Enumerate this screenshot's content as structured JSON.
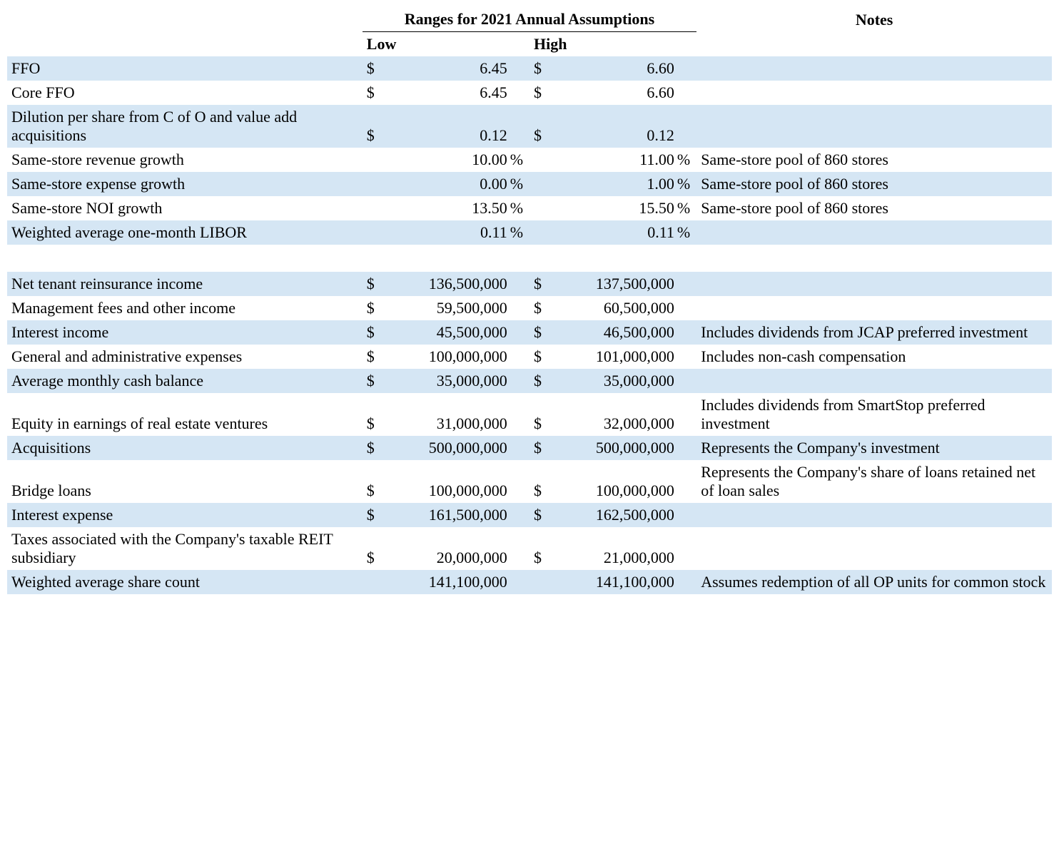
{
  "colors": {
    "stripe_bg": "#d5e6f4",
    "page_bg": "#ffffff",
    "text": "#000000",
    "border": "#000000"
  },
  "typography": {
    "font_family": "Times New Roman",
    "font_size_pt": 17
  },
  "header": {
    "main": "Ranges for 2021 Annual Assumptions",
    "notes": "Notes",
    "low": "Low",
    "high": "High"
  },
  "rows": [
    {
      "stripe": true,
      "label": "FFO",
      "low_sym": "$",
      "low_val": "6.45",
      "low_suffix": "",
      "high_sym": "$",
      "high_val": "6.60",
      "high_suffix": "",
      "notes": ""
    },
    {
      "stripe": false,
      "label": "Core FFO",
      "low_sym": "$",
      "low_val": "6.45",
      "low_suffix": "",
      "high_sym": "$",
      "high_val": "6.60",
      "high_suffix": "",
      "notes": ""
    },
    {
      "stripe": true,
      "label": "Dilution per share from C of O and value add acquisitions",
      "low_sym": "$",
      "low_val": "0.12",
      "low_suffix": "",
      "high_sym": "$",
      "high_val": "0.12",
      "high_suffix": "",
      "notes": ""
    },
    {
      "stripe": false,
      "label": "Same-store revenue growth",
      "low_sym": "",
      "low_val": "10.00",
      "low_suffix": " %",
      "high_sym": "",
      "high_val": "11.00",
      "high_suffix": " %",
      "notes": "Same-store pool of 860 stores"
    },
    {
      "stripe": true,
      "label": "Same-store expense growth",
      "low_sym": "",
      "low_val": "0.00",
      "low_suffix": " %",
      "high_sym": "",
      "high_val": "1.00",
      "high_suffix": " %",
      "notes": "Same-store pool of 860 stores"
    },
    {
      "stripe": false,
      "label": "Same-store NOI growth",
      "low_sym": "",
      "low_val": "13.50",
      "low_suffix": " %",
      "high_sym": "",
      "high_val": "15.50",
      "high_suffix": " %",
      "notes": "Same-store pool of 860 stores"
    },
    {
      "stripe": true,
      "label": "Weighted average one-month LIBOR",
      "low_sym": "",
      "low_val": "0.11",
      "low_suffix": " %",
      "high_sym": "",
      "high_val": "0.11",
      "high_suffix": " %",
      "notes": ""
    },
    {
      "spacer": true
    },
    {
      "stripe": true,
      "label": "Net tenant reinsurance income",
      "low_sym": "$",
      "low_val": "136,500,000",
      "low_suffix": "",
      "high_sym": "$",
      "high_val": "137,500,000",
      "high_suffix": "",
      "notes": ""
    },
    {
      "stripe": false,
      "label": "Management fees and other income",
      "low_sym": "$",
      "low_val": "59,500,000",
      "low_suffix": "",
      "high_sym": "$",
      "high_val": "60,500,000",
      "high_suffix": "",
      "notes": ""
    },
    {
      "stripe": true,
      "label": "Interest income",
      "low_sym": "$",
      "low_val": "45,500,000",
      "low_suffix": "",
      "high_sym": "$",
      "high_val": "46,500,000",
      "high_suffix": "",
      "notes": "Includes dividends from JCAP preferred investment"
    },
    {
      "stripe": false,
      "label": "General and administrative expenses",
      "low_sym": "$",
      "low_val": "100,000,000",
      "low_suffix": "",
      "high_sym": "$",
      "high_val": "101,000,000",
      "high_suffix": "",
      "notes": "Includes non-cash compensation"
    },
    {
      "stripe": true,
      "label": "Average monthly cash balance",
      "low_sym": "$",
      "low_val": "35,000,000",
      "low_suffix": "",
      "high_sym": "$",
      "high_val": "35,000,000",
      "high_suffix": "",
      "notes": ""
    },
    {
      "stripe": false,
      "label": "Equity in earnings of real estate ventures",
      "low_sym": "$",
      "low_val": "31,000,000",
      "low_suffix": "",
      "high_sym": "$",
      "high_val": "32,000,000",
      "high_suffix": "",
      "notes": "Includes dividends from SmartStop preferred investment"
    },
    {
      "stripe": true,
      "label": "Acquisitions",
      "low_sym": "$",
      "low_val": "500,000,000",
      "low_suffix": "",
      "high_sym": "$",
      "high_val": "500,000,000",
      "high_suffix": "",
      "notes": "Represents the Company's investment"
    },
    {
      "stripe": false,
      "label": "Bridge loans",
      "low_sym": "$",
      "low_val": "100,000,000",
      "low_suffix": "",
      "high_sym": "$",
      "high_val": "100,000,000",
      "high_suffix": "",
      "notes": "Represents the Company's share of loans retained net of loan sales"
    },
    {
      "stripe": true,
      "label": "Interest expense",
      "low_sym": "$",
      "low_val": "161,500,000",
      "low_suffix": "",
      "high_sym": "$",
      "high_val": "162,500,000",
      "high_suffix": "",
      "notes": ""
    },
    {
      "stripe": false,
      "label": "Taxes associated with the Company's taxable REIT subsidiary",
      "low_sym": "$",
      "low_val": "20,000,000",
      "low_suffix": "",
      "high_sym": "$",
      "high_val": "21,000,000",
      "high_suffix": "",
      "notes": ""
    },
    {
      "stripe": true,
      "label": "Weighted average share count",
      "low_sym": "",
      "low_val": "141,100,000",
      "low_suffix": "",
      "high_sym": "",
      "high_val": "141,100,000",
      "high_suffix": "",
      "notes": "Assumes redemption of all OP units for common stock"
    }
  ]
}
